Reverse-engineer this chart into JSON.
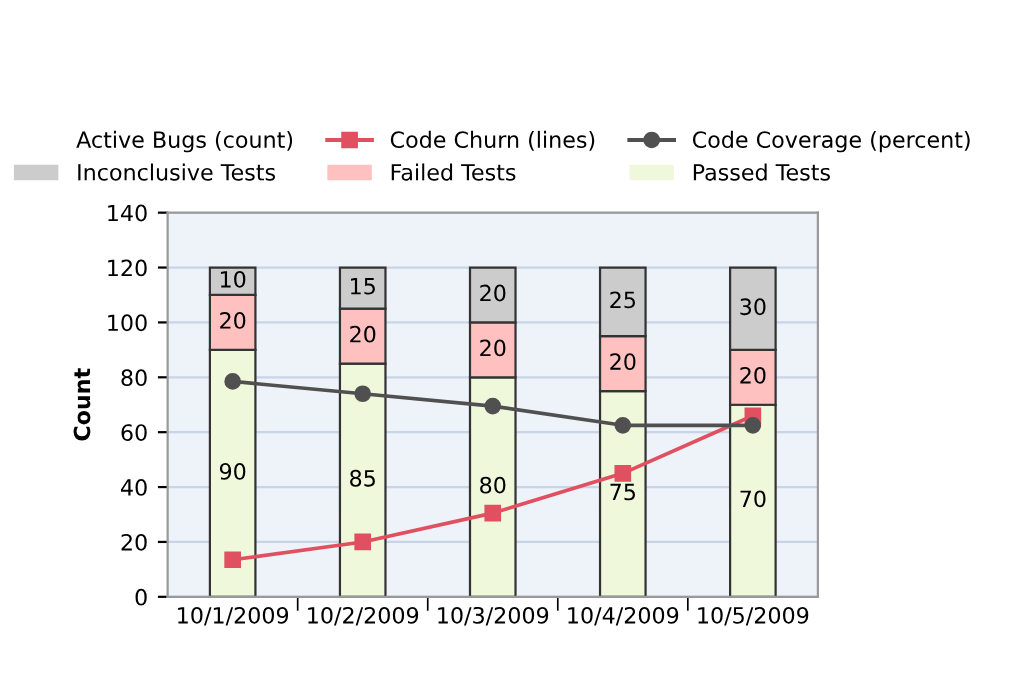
{
  "chart_data": {
    "type": "bar",
    "stacked": true,
    "ylabel": "Count",
    "categories": [
      "10/1/2009",
      "10/2/2009",
      "10/3/2009",
      "10/4/2009",
      "10/5/2009"
    ],
    "series": [
      {
        "name": "Passed Tests",
        "color": "#f0f8dc",
        "values": [
          90,
          85,
          80,
          75,
          70
        ],
        "value_labels": [
          "90",
          "85",
          "80",
          "75",
          "70"
        ]
      },
      {
        "name": "Failed Tests",
        "color": "#ffc0c0",
        "values": [
          20,
          20,
          20,
          20,
          20
        ],
        "value_labels": [
          "20",
          "20",
          "20",
          "20",
          "20"
        ]
      },
      {
        "name": "Inconclusive Tests",
        "color": "#cccccc",
        "values": [
          10,
          15,
          20,
          25,
          30
        ],
        "value_labels": [
          "10",
          "15",
          "20",
          "25",
          "30"
        ]
      },
      {
        "name": "Active Bugs (count)",
        "type": "line",
        "values": [
          null,
          null,
          null,
          null,
          null
        ]
      },
      {
        "name": "Code Churn (lines)",
        "type": "line",
        "color": "#e05060",
        "marker": "square",
        "values": [
          13.5,
          20,
          30.5,
          45,
          66
        ]
      },
      {
        "name": "Code Coverage (percent)",
        "type": "line",
        "color": "#505050",
        "marker": "circle",
        "values": [
          78.5,
          74,
          69.5,
          62.5,
          62.5
        ]
      }
    ],
    "ylim": [
      0,
      140
    ],
    "yticks": [
      0,
      20,
      40,
      60,
      80,
      100,
      120,
      140
    ],
    "grid": "y",
    "legend": "top"
  }
}
